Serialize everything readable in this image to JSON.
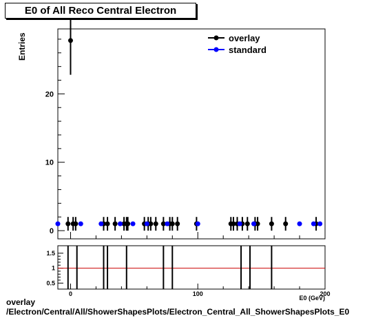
{
  "title": "E0 of All Reco Central Electron",
  "footer": {
    "line1": "overlay",
    "line2": "/Electron/Central/All/ShowerShapesPlots/Electron_Central_All_ShowerShapesPlots_E0"
  },
  "chart_data": {
    "type": "scatter",
    "title": "E0 of All Reco Central Electron",
    "xlabel": "E0 (GeV)",
    "ylabel": "Entries",
    "xlim": [
      -10,
      200
    ],
    "ylim": [
      -1.2,
      29.5
    ],
    "x_ticks": [
      0,
      100,
      200
    ],
    "y_ticks": [
      0,
      10,
      20
    ],
    "legend": {
      "placement": "top-right",
      "entries": [
        "overlay",
        "standard"
      ]
    },
    "series": [
      {
        "name": "overlay",
        "color": "#000000",
        "points": [
          {
            "x": 0,
            "y": 27.8,
            "err": 5
          },
          {
            "x": -2,
            "y": 1,
            "err": 1
          },
          {
            "x": 2,
            "y": 1,
            "err": 1
          },
          {
            "x": 4,
            "y": 1,
            "err": 1
          },
          {
            "x": 26,
            "y": 1,
            "err": 1
          },
          {
            "x": 29,
            "y": 1,
            "err": 1
          },
          {
            "x": 35,
            "y": 1,
            "err": 1
          },
          {
            "x": 42,
            "y": 1,
            "err": 1
          },
          {
            "x": 44,
            "y": 1,
            "err": 1
          },
          {
            "x": 45,
            "y": 1,
            "err": 1
          },
          {
            "x": 58,
            "y": 1,
            "err": 1
          },
          {
            "x": 61,
            "y": 1,
            "err": 1
          },
          {
            "x": 63,
            "y": 1,
            "err": 1
          },
          {
            "x": 67,
            "y": 1,
            "err": 1
          },
          {
            "x": 73,
            "y": 1,
            "err": 1
          },
          {
            "x": 78,
            "y": 1,
            "err": 1
          },
          {
            "x": 80,
            "y": 1,
            "err": 1
          },
          {
            "x": 84,
            "y": 1,
            "err": 1
          },
          {
            "x": 99,
            "y": 1,
            "err": 1
          },
          {
            "x": 126,
            "y": 1,
            "err": 1
          },
          {
            "x": 128,
            "y": 1,
            "err": 1
          },
          {
            "x": 131,
            "y": 1,
            "err": 1
          },
          {
            "x": 135,
            "y": 1,
            "err": 1
          },
          {
            "x": 139,
            "y": 1,
            "err": 1
          },
          {
            "x": 145,
            "y": 1,
            "err": 1
          },
          {
            "x": 147,
            "y": 1,
            "err": 1
          },
          {
            "x": 158,
            "y": 1,
            "err": 1
          },
          {
            "x": 169,
            "y": 1,
            "err": 1
          },
          {
            "x": 193,
            "y": 1,
            "err": 1
          }
        ]
      },
      {
        "name": "standard",
        "color": "#0000ff",
        "points": [
          {
            "x": -10,
            "y": 1
          },
          {
            "x": 8,
            "y": 1
          },
          {
            "x": 24,
            "y": 1
          },
          {
            "x": 39,
            "y": 1
          },
          {
            "x": 49,
            "y": 1
          },
          {
            "x": 60,
            "y": 1
          },
          {
            "x": 76,
            "y": 1
          },
          {
            "x": 100,
            "y": 1
          },
          {
            "x": 133,
            "y": 1
          },
          {
            "x": 144,
            "y": 1
          },
          {
            "x": 180,
            "y": 1
          },
          {
            "x": 191,
            "y": 1
          },
          {
            "x": 196,
            "y": 1
          }
        ]
      }
    ],
    "ratio_panel": {
      "ylim": [
        0.3,
        1.75
      ],
      "y_ticks": [
        0.5,
        1,
        1.5
      ],
      "reference_line": 1.0,
      "reference_color": "#cc0000",
      "vertical_lines_x": [
        -2,
        5,
        26,
        29,
        44,
        73,
        80,
        134,
        141,
        158
      ]
    }
  }
}
